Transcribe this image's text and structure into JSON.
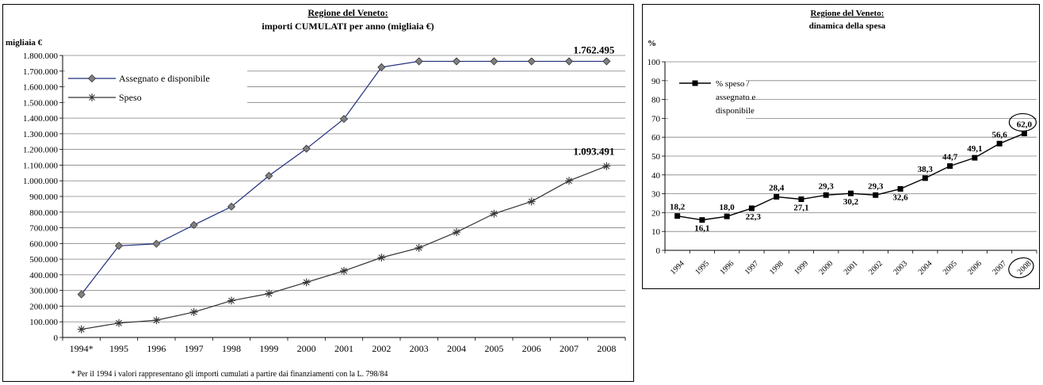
{
  "chart_data": [
    {
      "type": "line",
      "title": "Regione del Veneto:",
      "subtitle": "importi CUMULATI per anno (migliaia €)",
      "ylabel": "migliaia €",
      "footnote": "* Per il 1994 i valori rappresentano gli importi cumulati a partire dai finanziamenti con la L. 798/84",
      "categories": [
        "1994*",
        "1995",
        "1996",
        "1997",
        "1998",
        "1999",
        "2000",
        "2001",
        "2002",
        "2003",
        "2004",
        "2005",
        "2006",
        "2007",
        "2008"
      ],
      "ylim": [
        0,
        1800000
      ],
      "yticks": [
        "0",
        "100.000",
        "200.000",
        "300.000",
        "400.000",
        "500.000",
        "600.000",
        "700.000",
        "800.000",
        "900.000",
        "1.000.000",
        "1.100.000",
        "1.200.000",
        "1.300.000",
        "1.400.000",
        "1.500.000",
        "1.600.000",
        "1.700.000",
        "1.800.000"
      ],
      "grid": true,
      "legend_position": "top-left",
      "series": [
        {
          "name": "Assegnato e disponibile",
          "marker": "diamond",
          "color": "#1f2d7a",
          "values": [
            275000,
            585000,
            598000,
            718000,
            835000,
            1032000,
            1205000,
            1395000,
            1725000,
            1762495,
            1762495,
            1762495,
            1762495,
            1762495,
            1762495
          ]
        },
        {
          "name": "Speso",
          "marker": "asterisk",
          "color": "#333333",
          "values": [
            52000,
            92000,
            110000,
            162000,
            235000,
            280000,
            352000,
            425000,
            510000,
            572000,
            672000,
            790000,
            868000,
            1000000,
            1093491
          ]
        }
      ],
      "annotations": [
        "1.762.495",
        "1.093.491"
      ]
    },
    {
      "type": "line",
      "title": "Regione del Veneto:",
      "subtitle": "dinamica della spesa",
      "ylabel": "%",
      "categories": [
        "1994",
        "1995",
        "1996",
        "1997",
        "1998",
        "1999",
        "2000",
        "2001",
        "2002",
        "2003",
        "2004",
        "2005",
        "2006",
        "2007",
        "2008"
      ],
      "ylim": [
        0,
        100
      ],
      "yticks": [
        "0",
        "10",
        "20",
        "30",
        "40",
        "50",
        "60",
        "70",
        "80",
        "90",
        "100"
      ],
      "grid": true,
      "legend_position": "top-left",
      "series": [
        {
          "name_lines": [
            "% speso /",
            "assegnato e",
            "disponibile"
          ],
          "marker": "square",
          "color": "#000000",
          "values": [
            18.2,
            16.1,
            18.0,
            22.3,
            28.4,
            27.1,
            29.3,
            30.2,
            29.3,
            32.6,
            38.3,
            44.7,
            49.1,
            56.6,
            62.0
          ],
          "labels": [
            "18,2",
            "16,1",
            "18,0",
            "22,3",
            "28,4",
            "27,1",
            "29,3",
            "30,2",
            "29,3",
            "32,6",
            "38,3",
            "44,7",
            "49,1",
            "56,6",
            "62,0"
          ]
        }
      ],
      "highlighted": {
        "category": "2008",
        "label": "62,0"
      }
    }
  ]
}
